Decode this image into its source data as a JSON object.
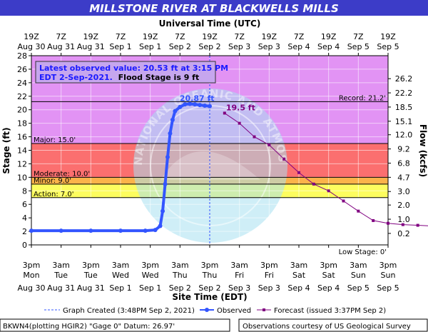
{
  "chart_data": {
    "type": "line",
    "title": "MILLSTONE RIVER AT BLACKWELLS MILLS",
    "top_axis_title": "Universal Time (UTC)",
    "xlabel": "Site Time (EDT)",
    "ylabel": "Stage (ft)",
    "y2label": "Flow (kcfs)",
    "ylim": [
      0,
      28
    ],
    "yticks": [
      0,
      2,
      4,
      6,
      8,
      10,
      12,
      14,
      16,
      18,
      20,
      22,
      24,
      26,
      28
    ],
    "y2ticks": [
      {
        "stage": 1.7,
        "label": "0.2"
      },
      {
        "stage": 3.8,
        "label": "1.0"
      },
      {
        "stage": 5.9,
        "label": "2.0"
      },
      {
        "stage": 7.9,
        "label": "3.0"
      },
      {
        "stage": 10.0,
        "label": "4.7"
      },
      {
        "stage": 12.1,
        "label": "6.8"
      },
      {
        "stage": 14.2,
        "label": "9.2"
      },
      {
        "stage": 16.3,
        "label": "12.0"
      },
      {
        "stage": 18.3,
        "label": "15.1"
      },
      {
        "stage": 20.4,
        "label": "18.5"
      },
      {
        "stage": 22.5,
        "label": "22.2"
      },
      {
        "stage": 24.6,
        "label": "26.2"
      }
    ],
    "xlim_hours": [
      0,
      144
    ],
    "bottom_ticks": [
      {
        "h": 0,
        "time": "3pm",
        "day": "Mon",
        "date": "Aug 30"
      },
      {
        "h": 12,
        "time": "3am",
        "day": "Tue",
        "date": "Aug 31"
      },
      {
        "h": 24,
        "time": "3pm",
        "day": "Tue",
        "date": "Aug 31"
      },
      {
        "h": 36,
        "time": "3am",
        "day": "Wed",
        "date": "Sep 1"
      },
      {
        "h": 48,
        "time": "3pm",
        "day": "Wed",
        "date": "Sep 1"
      },
      {
        "h": 60,
        "time": "3am",
        "day": "Thu",
        "date": "Sep 2"
      },
      {
        "h": 72,
        "time": "3pm",
        "day": "Thu",
        "date": "Sep 2"
      },
      {
        "h": 84,
        "time": "3am",
        "day": "Fri",
        "date": "Sep 3"
      },
      {
        "h": 96,
        "time": "3pm",
        "day": "Fri",
        "date": "Sep 3"
      },
      {
        "h": 108,
        "time": "3am",
        "day": "Sat",
        "date": "Sep 4"
      },
      {
        "h": 120,
        "time": "3pm",
        "day": "Sat",
        "date": "Sep 4"
      },
      {
        "h": 132,
        "time": "3am",
        "day": "Sun",
        "date": "Sep 5"
      },
      {
        "h": 144,
        "time": "3pm",
        "day": "Sun",
        "date": "Sep 5"
      }
    ],
    "top_ticks": [
      {
        "h": 0,
        "time": "19Z",
        "date": "Aug 30"
      },
      {
        "h": 12,
        "time": "7Z",
        "date": "Aug 31"
      },
      {
        "h": 24,
        "time": "19Z",
        "date": "Aug 31"
      },
      {
        "h": 36,
        "time": "7Z",
        "date": "Sep 1"
      },
      {
        "h": 48,
        "time": "19Z",
        "date": "Sep 1"
      },
      {
        "h": 60,
        "time": "7Z",
        "date": "Sep 2"
      },
      {
        "h": 72,
        "time": "19Z",
        "date": "Sep 2"
      },
      {
        "h": 84,
        "time": "7Z",
        "date": "Sep 3"
      },
      {
        "h": 96,
        "time": "19Z",
        "date": "Sep 3"
      },
      {
        "h": 108,
        "time": "7Z",
        "date": "Sep 4"
      },
      {
        "h": 120,
        "time": "19Z",
        "date": "Sep 4"
      },
      {
        "h": 132,
        "time": "7Z",
        "date": "Sep 5"
      },
      {
        "h": 144,
        "time": "19Z",
        "date": "Sep 5"
      }
    ],
    "bands": [
      {
        "from": 15,
        "to": 28,
        "color": "#e293f4"
      },
      {
        "from": 10,
        "to": 15,
        "color": "#fb6f6f"
      },
      {
        "from": 9,
        "to": 10,
        "color": "#fbb34a"
      },
      {
        "from": 7,
        "to": 9,
        "color": "#fdfd5f"
      },
      {
        "from": 0,
        "to": 7,
        "color": "#ffffff"
      }
    ],
    "thresholds": [
      {
        "value": 21.2,
        "label": "Record: 21.2'",
        "side": "right"
      },
      {
        "value": 15.0,
        "label": "Major: 15.0'",
        "side": "left"
      },
      {
        "value": 10.0,
        "label": "Moderate: 10.0'",
        "side": "left"
      },
      {
        "value": 9.0,
        "label": "Minor: 9.0'",
        "side": "left"
      },
      {
        "value": 7.0,
        "label": "Action: 7.0'",
        "side": "left"
      }
    ],
    "low_stage_label": "Low Stage: 0'",
    "graph_created_hour": 72,
    "observed": {
      "name": "Observed",
      "color": "#3355ff",
      "points": [
        [
          0,
          2.1
        ],
        [
          12,
          2.1
        ],
        [
          24,
          2.1
        ],
        [
          36,
          2.1
        ],
        [
          46,
          2.1
        ],
        [
          50,
          2.2
        ],
        [
          52,
          2.8
        ],
        [
          53,
          5.0
        ],
        [
          54,
          9.0
        ],
        [
          55,
          13.0
        ],
        [
          56,
          16.5
        ],
        [
          57,
          18.5
        ],
        [
          58,
          19.8
        ],
        [
          60,
          20.4
        ],
        [
          62,
          20.8
        ],
        [
          64,
          20.87
        ],
        [
          66,
          20.8
        ],
        [
          68,
          20.7
        ],
        [
          70,
          20.6
        ],
        [
          72,
          20.53
        ]
      ],
      "peak": {
        "h": 64,
        "value": 20.87,
        "label": "20.87 ft"
      }
    },
    "forecast": {
      "name": "Forecast (issued 3:37PM Sep 2)",
      "color": "#800080",
      "points": [
        [
          78,
          19.5
        ],
        [
          84,
          18.0
        ],
        [
          90,
          16.0
        ],
        [
          96,
          14.8
        ],
        [
          102,
          12.7
        ],
        [
          108,
          10.7
        ],
        [
          114,
          9.0
        ],
        [
          120,
          8.0
        ],
        [
          126,
          6.5
        ],
        [
          132,
          5.0
        ],
        [
          138,
          3.6
        ],
        [
          144,
          3.2
        ],
        [
          150,
          3.0
        ],
        [
          156,
          2.9
        ],
        [
          162,
          2.8
        ]
      ],
      "peak": {
        "h": 78,
        "value": 19.5,
        "label": "19.5 ft"
      }
    },
    "annotation": {
      "line1": "Latest observed value: 20.53 ft at 3:15 PM",
      "line2a": "EDT 2-Sep-2021.",
      "line2b": "Flood Stage is 9 ft"
    },
    "legend": {
      "graph_created": "Graph Created (3:48PM Sep 2, 2021)",
      "observed": "Observed",
      "forecast": "Forecast (issued 3:37PM Sep 2)"
    },
    "footer_left": "BKWN4(plotting HGIR2) \"Gage 0\" Datum: 26.97'",
    "footer_right": "Observations courtesy of US Geological Survey",
    "watermark_text": "NATIONAL OCEANIC AND ATMOSPHERIC ADMINISTRATION · US DEPARTMENT OF COMMERCE"
  },
  "colors": {
    "title_bg": "#3c3cc8",
    "annotation_bg": "#c6a6ee",
    "annotation_text_blue": "#1a1aff"
  }
}
